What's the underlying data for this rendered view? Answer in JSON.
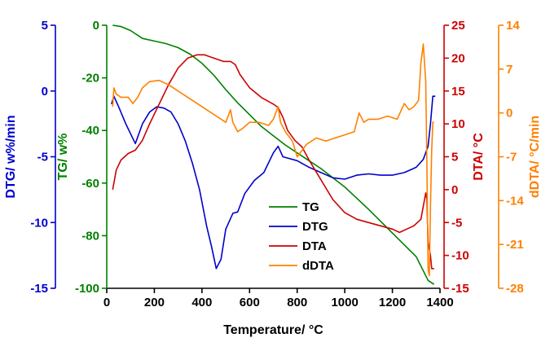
{
  "chart_data": {
    "type": "line",
    "x_axis": {
      "label": "Temperature/ °C",
      "range": [
        0,
        1400
      ],
      "ticks": [
        0,
        200,
        400,
        600,
        800,
        1000,
        1200,
        1400
      ],
      "color": "#000000"
    },
    "y_axes": [
      {
        "id": "DTG",
        "label": "DTG/ w%/min",
        "color": "#0000CC",
        "range": [
          -15,
          5
        ],
        "ticks": [
          -15,
          -10,
          -5,
          0,
          5
        ]
      },
      {
        "id": "TG",
        "label": "TG/ w%",
        "color": "#008000",
        "range": [
          -100,
          0
        ],
        "ticks": [
          -100,
          -80,
          -60,
          -40,
          -20,
          0
        ]
      },
      {
        "id": "DTA",
        "label": "DTA/ °C",
        "color": "#CC0000",
        "range": [
          -15,
          25
        ],
        "ticks": [
          -15,
          -10,
          -5,
          0,
          5,
          10,
          15,
          20,
          25
        ]
      },
      {
        "id": "dDTA",
        "label": "dDTA/ °C/min",
        "color": "#FF8000",
        "range": [
          -28,
          14
        ],
        "ticks": [
          -28,
          -21,
          -14,
          -7,
          0,
          7,
          14
        ]
      }
    ],
    "legend": {
      "position": "center-bottom",
      "entries": [
        {
          "name": "TG",
          "color": "#008000"
        },
        {
          "name": "DTG",
          "color": "#0000CC"
        },
        {
          "name": "DTA",
          "color": "#CC0000"
        },
        {
          "name": "dDTA",
          "color": "#FF8000"
        }
      ]
    },
    "series": [
      {
        "name": "TG",
        "axis": "TG",
        "color": "#008000",
        "x": [
          25,
          60,
          100,
          150,
          200,
          250,
          300,
          350,
          400,
          450,
          500,
          550,
          600,
          650,
          700,
          750,
          800,
          900,
          1000,
          1100,
          1200,
          1300,
          1350,
          1375
        ],
        "y": [
          0,
          -0.5,
          -2,
          -5,
          -6,
          -7,
          -8.5,
          -11,
          -14.5,
          -19,
          -24.5,
          -29.5,
          -34,
          -38.5,
          -42,
          -45.5,
          -48.5,
          -54.5,
          -61.5,
          -70,
          -79,
          -88,
          -97,
          -98.5
        ]
      },
      {
        "name": "DTG",
        "axis": "DTG",
        "color": "#0000CC",
        "x": [
          20,
          30,
          50,
          80,
          120,
          150,
          180,
          210,
          240,
          270,
          300,
          330,
          360,
          390,
          420,
          440,
          460,
          480,
          500,
          530,
          550,
          580,
          620,
          660,
          700,
          720,
          740,
          800,
          850,
          900,
          950,
          1000,
          1050,
          1100,
          1150,
          1200,
          1250,
          1300,
          1330,
          1350,
          1360,
          1370,
          1380
        ],
        "y": [
          -1,
          -0.4,
          -1.2,
          -2.5,
          -4,
          -2.5,
          -1.6,
          -1.2,
          -1.3,
          -1.6,
          -2.5,
          -3.8,
          -5.5,
          -7.5,
          -10.3,
          -11.8,
          -13.5,
          -12.8,
          -10.5,
          -9.3,
          -9.2,
          -7.8,
          -6.8,
          -6.2,
          -4.7,
          -4.2,
          -5,
          -5.3,
          -5.8,
          -6.2,
          -6.6,
          -6.7,
          -6.4,
          -6.3,
          -6.4,
          -6.4,
          -6.2,
          -5.8,
          -5.2,
          -4.2,
          -2.5,
          -0.4,
          -0.4
        ]
      },
      {
        "name": "DTA",
        "axis": "DTA",
        "color": "#CC0000",
        "x": [
          25,
          40,
          60,
          90,
          120,
          150,
          180,
          220,
          260,
          300,
          340,
          380,
          410,
          450,
          490,
          520,
          540,
          560,
          600,
          650,
          700,
          720,
          740,
          760,
          790,
          820,
          850,
          900,
          950,
          1000,
          1050,
          1100,
          1150,
          1200,
          1230,
          1260,
          1290,
          1320,
          1340,
          1345,
          1350,
          1360,
          1365,
          1375
        ],
        "y": [
          0,
          3,
          4.5,
          5.5,
          6,
          7.5,
          10,
          13,
          16,
          18.5,
          20,
          20.5,
          20.5,
          20,
          19.5,
          19.5,
          19,
          17.5,
          15.5,
          14,
          13,
          12.5,
          11,
          9,
          7.5,
          6.5,
          4.5,
          1.5,
          -1.5,
          -3.5,
          -4.5,
          -5,
          -5.5,
          -6,
          -6.5,
          -6,
          -5.5,
          -4.5,
          -0.5,
          -1.5,
          -8,
          -10,
          -12,
          -12
        ]
      },
      {
        "name": "dDTA",
        "axis": "dDTA",
        "color": "#FF8000",
        "x": [
          25,
          30,
          40,
          60,
          90,
          110,
          130,
          150,
          180,
          220,
          260,
          300,
          340,
          380,
          420,
          460,
          500,
          520,
          530,
          550,
          570,
          600,
          640,
          680,
          700,
          720,
          730,
          750,
          780,
          800,
          840,
          880,
          920,
          960,
          1000,
          1040,
          1060,
          1080,
          1100,
          1140,
          1180,
          1220,
          1250,
          1270,
          1290,
          1310,
          1320,
          1330,
          1340,
          1345,
          1350,
          1355,
          1360,
          1365,
          1370,
          1375
        ],
        "y": [
          1,
          4,
          3,
          2.5,
          2.5,
          1.5,
          2.5,
          4,
          5,
          5.2,
          4.5,
          3.5,
          2.5,
          1.5,
          0.5,
          -0.5,
          -1.5,
          0.5,
          -1.5,
          -3,
          -2.5,
          -1.5,
          -1.5,
          -2,
          -1,
          1,
          -1.5,
          -3,
          -4.5,
          -7,
          -5,
          -4,
          -4.5,
          -4,
          -3.5,
          -3,
          0,
          -1.5,
          -1,
          -1,
          -0.5,
          -1,
          1.5,
          0.5,
          1,
          2,
          8,
          11,
          5,
          -8,
          -25,
          -26,
          -15,
          -6,
          -1.5,
          -1.5
        ]
      }
    ]
  }
}
